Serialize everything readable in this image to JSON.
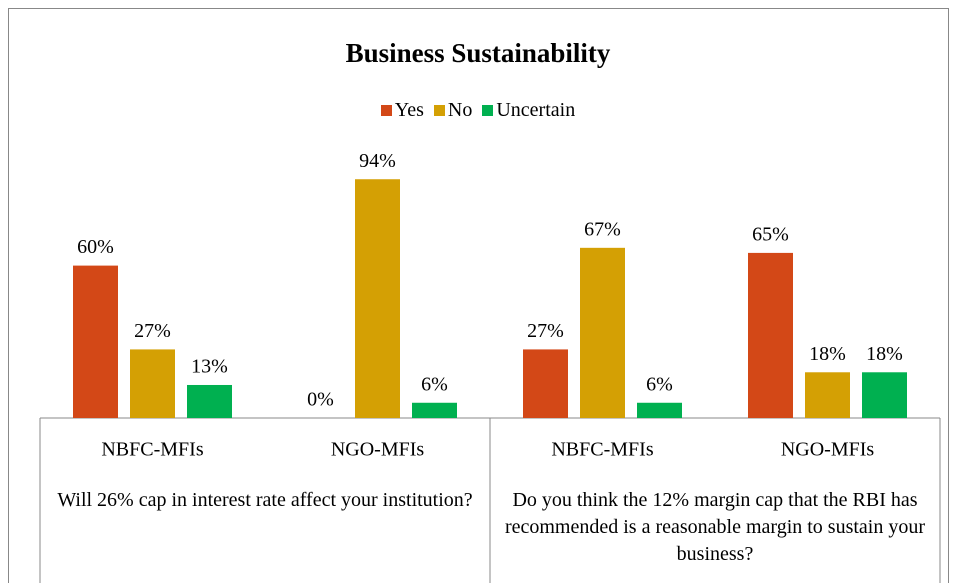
{
  "chart_data": {
    "type": "bar",
    "title": "Business Sustainability",
    "groups": [
      {
        "label": "Will 26% cap in interest rate affect your institution?",
        "categories": [
          "NBFC-MFIs",
          "NGO-MFIs"
        ]
      },
      {
        "label": "Do you think the 12% margin cap that the RBI has recommended is a reasonable margin to sustain your business?",
        "categories": [
          "NBFC-MFIs",
          "NGO-MFIs"
        ]
      }
    ],
    "series": [
      {
        "name": "Yes",
        "color": "#d34817",
        "values": [
          60,
          0,
          27,
          65
        ],
        "value_labels": [
          "60%",
          "0%",
          "27%",
          "65%"
        ]
      },
      {
        "name": "No",
        "color": "#d4a004",
        "values": [
          27,
          94,
          67,
          18
        ],
        "value_labels": [
          "27%",
          "94%",
          "67%",
          "18%"
        ]
      },
      {
        "name": "Uncertain",
        "color": "#00b050",
        "values": [
          13,
          6,
          6,
          18
        ],
        "value_labels": [
          "13%",
          "6%",
          "6%",
          "18%"
        ]
      }
    ],
    "ylim": [
      0,
      100
    ],
    "legend": "top"
  }
}
